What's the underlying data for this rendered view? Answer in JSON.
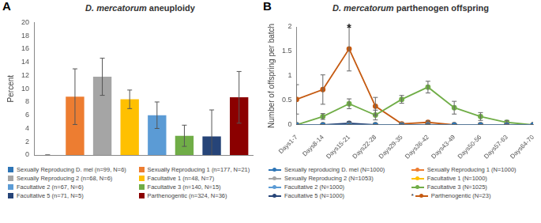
{
  "chart_data": [
    {
      "panel": "A",
      "type": "bar",
      "title": "D. mercatorum aneuploidy",
      "y_label": "Percent",
      "categories": [
        "Sexually Reproducing D. mel (n=99, N=6)",
        "Sexually Reproducing 1 (n=177, N=21)",
        "Sexually Reproducing 2 (n=68, N=6)",
        "Facultative 1 (n=48, N=7)",
        "Facultative 2 (n=67, N=6)",
        "Facultative 3 (n=140, N=15)",
        "Facultative 5 (n=71, N=5)",
        "Parthenogentic (n=324, N=36)"
      ],
      "values": [
        0,
        8.8,
        11.8,
        8.4,
        6.0,
        2.9,
        2.8,
        8.7
      ],
      "errors": [
        0,
        4.2,
        2.8,
        1.4,
        2.0,
        1.6,
        4.0,
        3.9
      ],
      "colors": [
        "#2e75b6",
        "#ed7d31",
        "#a5a5a5",
        "#ffc000",
        "#5b9bd5",
        "#70ad47",
        "#264478",
        "#8b0000"
      ],
      "ylim": [
        0,
        20
      ],
      "yticks": [
        0,
        2,
        4,
        6,
        8,
        10,
        12,
        14,
        16,
        18,
        20
      ],
      "grid": false,
      "legend": "bottom",
      "tick_labels": "y"
    },
    {
      "panel": "B",
      "type": "line",
      "title": "D. mercatorum parthenogen offspring",
      "y_label": "Number of offspring per batch",
      "categories": [
        "Days1-7",
        "Days8-14",
        "Days15-21",
        "Days22-28",
        "Days29-35",
        "Days36-42",
        "Days43-49",
        "Days50-56",
        "Days57-63",
        "Days64-70"
      ],
      "series": [
        {
          "name": "Sexually reproducing D. mel (N=1000)",
          "color": "#2e75b6",
          "values": [
            0,
            0,
            0,
            0,
            0,
            0,
            0,
            0,
            0,
            0
          ],
          "errors": [
            0,
            0,
            0,
            0,
            0,
            0,
            0,
            0,
            0,
            0
          ]
        },
        {
          "name": "Sexually Reproducing 1 (N=1000)",
          "color": "#ed7d31",
          "values": [
            0,
            0,
            0,
            0,
            0,
            0,
            0,
            0,
            0,
            0
          ],
          "errors": [
            0,
            0,
            0,
            0,
            0,
            0,
            0,
            0,
            0,
            0
          ]
        },
        {
          "name": "Sexually Reproducing 2 (N=1053)",
          "color": "#a5a5a5",
          "values": [
            0,
            0,
            0,
            0,
            0,
            0,
            0,
            0,
            0,
            0
          ],
          "errors": [
            0,
            0,
            0,
            0,
            0,
            0,
            0,
            0,
            0,
            0
          ]
        },
        {
          "name": "Facultative 1 (N=1000)",
          "color": "#ffc000",
          "values": [
            0,
            0,
            0,
            0,
            0,
            0,
            0,
            0,
            0,
            0
          ],
          "errors": [
            0,
            0,
            0,
            0,
            0,
            0,
            0,
            0,
            0,
            0
          ]
        },
        {
          "name": "Facultative 2 (N=1000)",
          "color": "#5b9bd5",
          "values": [
            0,
            0,
            0,
            0,
            0,
            0,
            0,
            0,
            0,
            0
          ],
          "errors": [
            0,
            0,
            0,
            0,
            0,
            0,
            0,
            0,
            0,
            0
          ]
        },
        {
          "name": "Facultative 3 (N=1025)",
          "color": "#70ad47",
          "values": [
            0,
            0.17,
            0.43,
            0.2,
            0.52,
            0.77,
            0.35,
            0.17,
            0.05,
            0
          ],
          "errors": [
            0,
            0.06,
            0.1,
            0.1,
            0.08,
            0.12,
            0.13,
            0.08,
            0.04,
            0
          ]
        },
        {
          "name": "Facultative 5 (N=1000)",
          "color": "#264478",
          "values": [
            0,
            0,
            0.03,
            0,
            0,
            0,
            0,
            0,
            0,
            0
          ],
          "errors": [
            0,
            0,
            0.03,
            0,
            0,
            0,
            0,
            0,
            0,
            0
          ]
        },
        {
          "name": "Parthenogentic (N=23)",
          "color": "#c55a11",
          "values": [
            0.52,
            0.72,
            1.55,
            0.38,
            0.02,
            0.05,
            0,
            0,
            0,
            0
          ],
          "errors": [
            0.3,
            0.3,
            0.45,
            0.18,
            0.02,
            0.03,
            0,
            0,
            0,
            0
          ]
        }
      ],
      "annotations": [
        {
          "text": "*",
          "series": "Parthenogentic (N=23)",
          "category": "Days15-21"
        }
      ],
      "ylim": [
        0,
        2
      ],
      "yticks": [
        0,
        0.5,
        1,
        1.5,
        2
      ],
      "grid": false,
      "legend": "bottom",
      "marker": "circle"
    }
  ]
}
